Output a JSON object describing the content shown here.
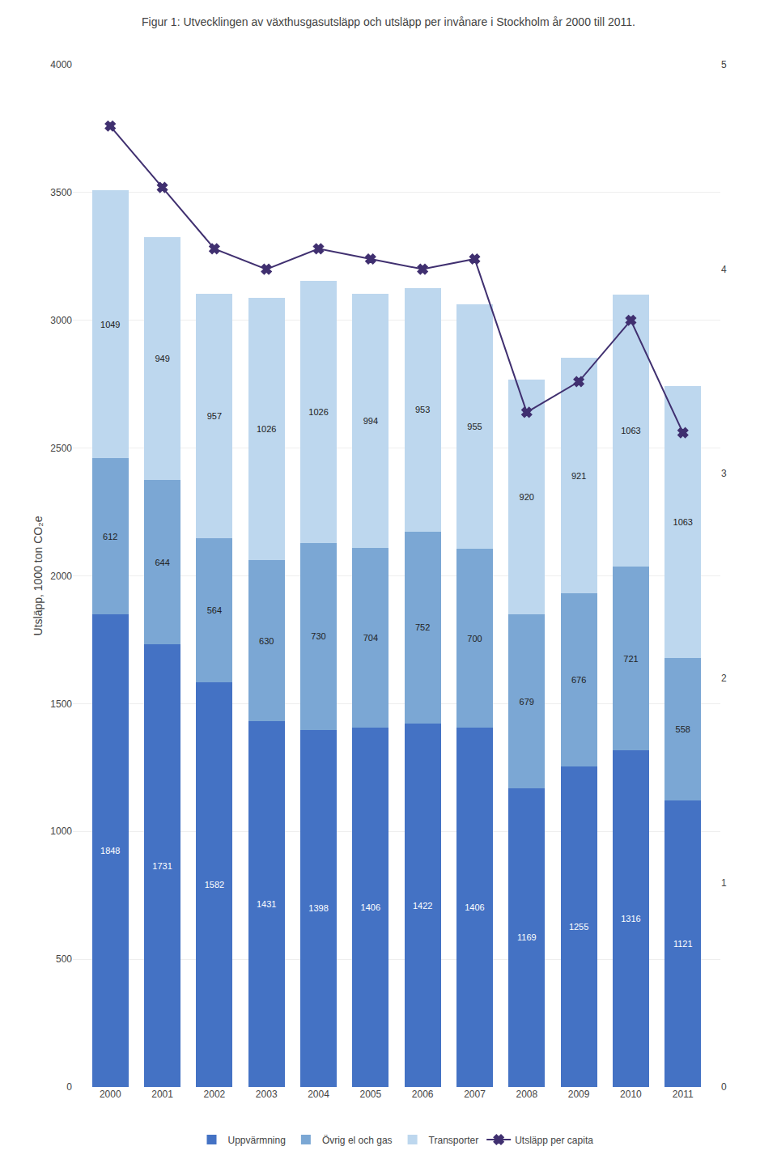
{
  "chart_data": {
    "type": "bar",
    "title": "Figur 1: Utvecklingen av växthusgasutsläpp och utsläpp per invånare i Stockholm år 2000 till 2011.",
    "ylabel": "Utsläpp, 1000 ton CO₂e",
    "categories": [
      "2000",
      "2001",
      "2002",
      "2003",
      "2004",
      "2005",
      "2006",
      "2007",
      "2008",
      "2009",
      "2010",
      "2011"
    ],
    "stacked": true,
    "grid": true,
    "legend": "bottom",
    "ylim": [
      0,
      4000
    ],
    "yticks": [
      0,
      500,
      1000,
      1500,
      2000,
      2500,
      3000,
      3500,
      4000
    ],
    "y2lim": [
      0,
      5
    ],
    "y2ticks": [
      0,
      1,
      2,
      3,
      4,
      5
    ],
    "series": [
      {
        "name": "Uppvärmning",
        "type": "bar",
        "color": "#4472C4",
        "data_labels": true,
        "values": [
          1848,
          1731,
          1582,
          1431,
          1398,
          1406,
          1422,
          1406,
          1169,
          1255,
          1316,
          1121
        ]
      },
      {
        "name": "Övrig el och gas",
        "type": "bar",
        "color": "#7BA7D4",
        "data_labels": true,
        "values": [
          612,
          644,
          564,
          630,
          730,
          704,
          752,
          700,
          679,
          676,
          721,
          558
        ]
      },
      {
        "name": "Transporter",
        "type": "bar",
        "color": "#BDD7EE",
        "data_labels": true,
        "values": [
          1049,
          949,
          957,
          1026,
          1026,
          994,
          953,
          955,
          920,
          921,
          1063,
          1063
        ]
      },
      {
        "name": "Utsläpp per capita",
        "type": "line",
        "axis": "y2",
        "color": "#403070",
        "marker": "x",
        "values": [
          4.7,
          4.4,
          4.1,
          4.0,
          4.1,
          4.05,
          4.0,
          4.05,
          3.3,
          3.45,
          3.75,
          3.2
        ]
      }
    ]
  }
}
